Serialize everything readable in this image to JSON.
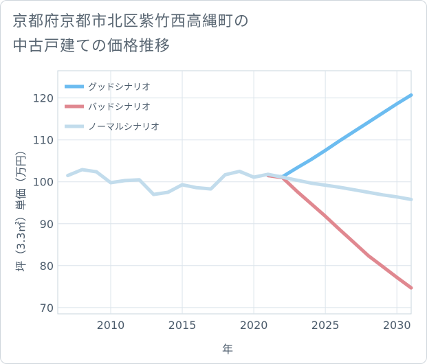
{
  "chart_data": {
    "type": "line",
    "title_line1": "京都府京都市北区紫竹西高縄町の",
    "title_line2": "中古戸建ての価格推移",
    "xlabel": "年",
    "ylabel": "坪（3.3㎡）単価（万円）",
    "xlim": [
      2006.3,
      2031
    ],
    "ylim": [
      68.5,
      126.5
    ],
    "xticks": [
      2010,
      2015,
      2020,
      2025,
      2030
    ],
    "yticks": [
      70,
      80,
      90,
      100,
      110,
      120
    ],
    "grid": true,
    "legend_position": "top-left",
    "series": [
      {
        "name": "グッドシナリオ",
        "color": "#6cbcf0",
        "x": [
          2021,
          2022,
          2023,
          2024,
          2025,
          2026,
          2027,
          2028,
          2029,
          2030,
          2031
        ],
        "y": [
          101.5,
          101.2,
          103.3,
          105.3,
          107.5,
          109.8,
          112.0,
          114.2,
          116.4,
          118.6,
          120.7
        ]
      },
      {
        "name": "バッドシナリオ",
        "color": "#e08890",
        "x": [
          2021,
          2022,
          2023,
          2024,
          2025,
          2026,
          2027,
          2028,
          2029,
          2030,
          2031
        ],
        "y": [
          101.5,
          101.0,
          97.8,
          94.8,
          91.8,
          88.6,
          85.5,
          82.4,
          79.8,
          77.2,
          74.7
        ]
      },
      {
        "name": "ノーマルシナリオ",
        "color": "#c2dcec",
        "x": [
          2007,
          2008,
          2009,
          2010,
          2011,
          2012,
          2013,
          2014,
          2015,
          2016,
          2017,
          2018,
          2019,
          2020,
          2021,
          2022,
          2023,
          2024,
          2025,
          2026,
          2027,
          2028,
          2029,
          2030,
          2031
        ],
        "y": [
          101.5,
          102.9,
          102.4,
          99.8,
          100.3,
          100.5,
          97.0,
          97.5,
          99.3,
          98.6,
          98.3,
          101.7,
          102.5,
          101.1,
          101.8,
          101.1,
          100.4,
          99.7,
          99.2,
          98.7,
          98.1,
          97.5,
          96.9,
          96.4,
          95.8
        ]
      }
    ]
  }
}
